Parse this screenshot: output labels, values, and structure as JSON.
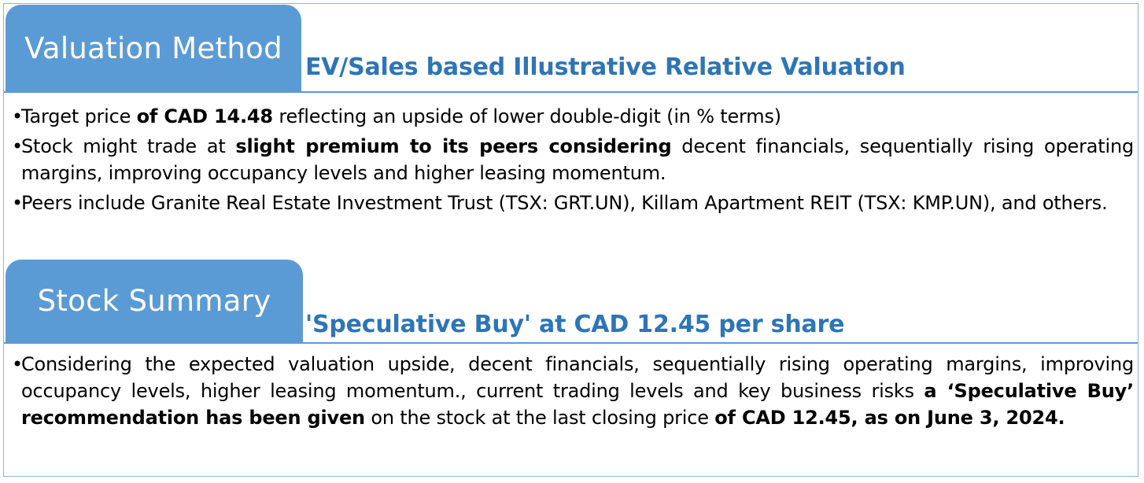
{
  "valuation": {
    "tab_label": "Valuation Method",
    "subtitle": "EV/Sales based Illustrative Relative Valuation",
    "bullets": [
      [
        {
          "t": "Target price ",
          "b": false
        },
        {
          "t": "of CAD 14.48",
          "b": true
        },
        {
          "t": " reflecting an upside of lower double-digit (in % terms)",
          "b": false
        }
      ],
      [
        {
          "t": "Stock might trade at ",
          "b": false
        },
        {
          "t": "slight premium to its peers considering",
          "b": true
        },
        {
          "t": " decent financials, sequentially rising operating margins, improving occupancy levels and higher leasing momentum.",
          "b": false
        }
      ],
      [
        {
          "t": "Peers include Granite Real Estate Investment Trust (TSX: GRT.UN), Killam Apartment REIT (TSX: KMP.UN), and others.",
          "b": false
        }
      ]
    ]
  },
  "summary": {
    "tab_label": "Stock Summary",
    "subtitle": "'Speculative Buy' at CAD 12.45 per share",
    "bullets": [
      [
        {
          "t": "Considering the expected valuation upside, decent financials, sequentially rising operating margins, improving occupancy levels, higher leasing momentum., current trading levels and key business risks ",
          "b": false
        },
        {
          "t": "a ‘Speculative Buy’ recommendation has been given",
          "b": true
        },
        {
          "t": " on the stock at the last closing price ",
          "b": false
        },
        {
          "t": "of CAD 12.45, as on June 3, 2024.",
          "b": true
        }
      ]
    ]
  },
  "bullet_char": "•",
  "colors": {
    "tab_bg": "#5b9bd5",
    "subtitle": "#2e75b6",
    "border": "#8fb3dd"
  }
}
